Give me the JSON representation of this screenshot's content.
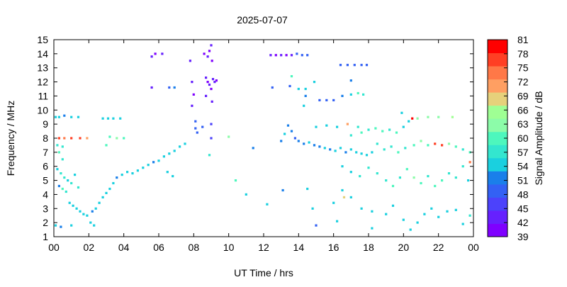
{
  "chart_data": {
    "type": "scatter",
    "title": "2025-07-07",
    "xlabel": "UT Time / hrs",
    "ylabel": "Frequency / MHz",
    "xlim": [
      0,
      24
    ],
    "ylim": [
      1,
      15
    ],
    "x_ticks": [
      "00",
      "02",
      "04",
      "06",
      "08",
      "10",
      "12",
      "14",
      "16",
      "18",
      "20",
      "22",
      "00"
    ],
    "y_ticks": [
      "1",
      "2",
      "3",
      "4",
      "5",
      "6",
      "7",
      "8",
      "9",
      "10",
      "11",
      "12",
      "13",
      "14",
      "15"
    ],
    "grid": false,
    "colorbar": {
      "label": "Signal Amplitude / dB",
      "range": [
        39,
        81
      ],
      "ticks": [
        "39",
        "42",
        "45",
        "48",
        "51",
        "54",
        "57",
        "60",
        "63",
        "66",
        "69",
        "72",
        "75",
        "78",
        "81"
      ],
      "colors": [
        "#7f00ff",
        "#6621fe",
        "#4c42fb",
        "#3361f4",
        "#1a7fea",
        "#1ad0df",
        "#33e6cf",
        "#4df7bd",
        "#8cfca9",
        "#9fff94",
        "#e6d17b",
        "#ff9f62",
        "#ff7847",
        "#ff3f24",
        "#ff0000"
      ]
    },
    "series_description": "Ionospheric echo amplitude vs frequency and UT time; point values are sampled points of each visible cluster.",
    "points": [
      {
        "x": 0.1,
        "y": 9.5,
        "v": 55
      },
      {
        "x": 0.3,
        "y": 9.5,
        "v": 54
      },
      {
        "x": 0.6,
        "y": 9.6,
        "v": 52
      },
      {
        "x": 1.0,
        "y": 9.5,
        "v": 55
      },
      {
        "x": 1.4,
        "y": 9.5,
        "v": 53
      },
      {
        "x": 0.3,
        "y": 8.0,
        "v": 78
      },
      {
        "x": 0.6,
        "y": 8.0,
        "v": 74
      },
      {
        "x": 1.0,
        "y": 8.0,
        "v": 77
      },
      {
        "x": 1.5,
        "y": 8.0,
        "v": 76
      },
      {
        "x": 1.9,
        "y": 8.0,
        "v": 70
      },
      {
        "x": 0.2,
        "y": 7.5,
        "v": 57
      },
      {
        "x": 0.5,
        "y": 7.4,
        "v": 56
      },
      {
        "x": 0.3,
        "y": 7.0,
        "v": 60
      },
      {
        "x": 0.5,
        "y": 6.5,
        "v": 58
      },
      {
        "x": 0.2,
        "y": 5.8,
        "v": 54
      },
      {
        "x": 0.4,
        "y": 5.5,
        "v": 56
      },
      {
        "x": 0.6,
        "y": 5.2,
        "v": 57
      },
      {
        "x": 0.8,
        "y": 5.0,
        "v": 55
      },
      {
        "x": 1.0,
        "y": 4.8,
        "v": 58
      },
      {
        "x": 0.3,
        "y": 4.6,
        "v": 52
      },
      {
        "x": 0.5,
        "y": 4.4,
        "v": 60
      },
      {
        "x": 0.7,
        "y": 4.2,
        "v": 56
      },
      {
        "x": 1.2,
        "y": 5.4,
        "v": 55
      },
      {
        "x": 1.4,
        "y": 4.5,
        "v": 57
      },
      {
        "x": 0.1,
        "y": 1.8,
        "v": 55
      },
      {
        "x": 0.4,
        "y": 1.7,
        "v": 52
      },
      {
        "x": 1.0,
        "y": 1.8,
        "v": 54
      },
      {
        "x": 0.9,
        "y": 3.4,
        "v": 53
      },
      {
        "x": 1.1,
        "y": 3.2,
        "v": 54
      },
      {
        "x": 1.3,
        "y": 3.0,
        "v": 55
      },
      {
        "x": 1.5,
        "y": 2.8,
        "v": 53
      },
      {
        "x": 1.7,
        "y": 2.6,
        "v": 54
      },
      {
        "x": 1.9,
        "y": 2.5,
        "v": 55
      },
      {
        "x": 2.1,
        "y": 2.0,
        "v": 53
      },
      {
        "x": 2.3,
        "y": 1.8,
        "v": 54
      },
      {
        "x": 2.2,
        "y": 2.8,
        "v": 52
      },
      {
        "x": 2.4,
        "y": 3.0,
        "v": 55
      },
      {
        "x": 2.6,
        "y": 3.4,
        "v": 53
      },
      {
        "x": 2.8,
        "y": 3.8,
        "v": 54
      },
      {
        "x": 3.0,
        "y": 4.1,
        "v": 55
      },
      {
        "x": 3.2,
        "y": 4.4,
        "v": 54
      },
      {
        "x": 3.4,
        "y": 4.8,
        "v": 53
      },
      {
        "x": 3.6,
        "y": 5.2,
        "v": 52
      },
      {
        "x": 3.9,
        "y": 5.4,
        "v": 54
      },
      {
        "x": 4.2,
        "y": 5.6,
        "v": 53
      },
      {
        "x": 4.5,
        "y": 5.5,
        "v": 55
      },
      {
        "x": 4.8,
        "y": 5.7,
        "v": 54
      },
      {
        "x": 2.8,
        "y": 9.4,
        "v": 55
      },
      {
        "x": 3.1,
        "y": 9.4,
        "v": 54
      },
      {
        "x": 3.4,
        "y": 9.4,
        "v": 55
      },
      {
        "x": 3.8,
        "y": 9.4,
        "v": 53
      },
      {
        "x": 3.2,
        "y": 8.1,
        "v": 60
      },
      {
        "x": 3.6,
        "y": 8.0,
        "v": 62
      },
      {
        "x": 4.0,
        "y": 8.0,
        "v": 60
      },
      {
        "x": 3.0,
        "y": 7.5,
        "v": 61
      },
      {
        "x": 5.1,
        "y": 5.9,
        "v": 53
      },
      {
        "x": 5.4,
        "y": 6.1,
        "v": 54
      },
      {
        "x": 5.7,
        "y": 6.3,
        "v": 52
      },
      {
        "x": 6.0,
        "y": 6.4,
        "v": 55
      },
      {
        "x": 6.3,
        "y": 6.7,
        "v": 54
      },
      {
        "x": 6.6,
        "y": 6.9,
        "v": 53
      },
      {
        "x": 6.9,
        "y": 7.1,
        "v": 55
      },
      {
        "x": 7.2,
        "y": 7.4,
        "v": 54
      },
      {
        "x": 7.5,
        "y": 7.6,
        "v": 53
      },
      {
        "x": 6.5,
        "y": 5.6,
        "v": 55
      },
      {
        "x": 6.8,
        "y": 5.3,
        "v": 54
      },
      {
        "x": 5.6,
        "y": 13.8,
        "v": 42
      },
      {
        "x": 5.8,
        "y": 14.0,
        "v": 41
      },
      {
        "x": 6.2,
        "y": 14.0,
        "v": 42
      },
      {
        "x": 5.6,
        "y": 11.6,
        "v": 42
      },
      {
        "x": 6.6,
        "y": 11.6,
        "v": 50
      },
      {
        "x": 6.9,
        "y": 11.6,
        "v": 51
      },
      {
        "x": 7.8,
        "y": 13.5,
        "v": 42
      },
      {
        "x": 7.9,
        "y": 12.0,
        "v": 43
      },
      {
        "x": 8.0,
        "y": 11.1,
        "v": 41
      },
      {
        "x": 7.9,
        "y": 10.3,
        "v": 42
      },
      {
        "x": 8.1,
        "y": 9.2,
        "v": 48
      },
      {
        "x": 8.1,
        "y": 8.7,
        "v": 49
      },
      {
        "x": 8.2,
        "y": 8.4,
        "v": 48
      },
      {
        "x": 8.5,
        "y": 8.8,
        "v": 50
      },
      {
        "x": 8.6,
        "y": 14.0,
        "v": 41
      },
      {
        "x": 8.8,
        "y": 13.8,
        "v": 42
      },
      {
        "x": 8.9,
        "y": 14.2,
        "v": 41
      },
      {
        "x": 9.0,
        "y": 14.6,
        "v": 42
      },
      {
        "x": 9.05,
        "y": 13.5,
        "v": 41
      },
      {
        "x": 8.7,
        "y": 12.3,
        "v": 42
      },
      {
        "x": 8.8,
        "y": 12.0,
        "v": 41
      },
      {
        "x": 8.9,
        "y": 11.8,
        "v": 42
      },
      {
        "x": 9.0,
        "y": 11.5,
        "v": 41
      },
      {
        "x": 9.1,
        "y": 12.2,
        "v": 42
      },
      {
        "x": 9.2,
        "y": 12.0,
        "v": 42
      },
      {
        "x": 9.3,
        "y": 12.1,
        "v": 41
      },
      {
        "x": 8.7,
        "y": 11.0,
        "v": 42
      },
      {
        "x": 9.05,
        "y": 10.6,
        "v": 43
      },
      {
        "x": 9.0,
        "y": 9.0,
        "v": 46
      },
      {
        "x": 9.0,
        "y": 8.0,
        "v": 47
      },
      {
        "x": 8.9,
        "y": 6.8,
        "v": 58
      },
      {
        "x": 10.0,
        "y": 8.1,
        "v": 63
      },
      {
        "x": 11.4,
        "y": 7.3,
        "v": 52
      },
      {
        "x": 10.4,
        "y": 5.0,
        "v": 59
      },
      {
        "x": 11.0,
        "y": 4.0,
        "v": 54
      },
      {
        "x": 12.2,
        "y": 3.3,
        "v": 53
      },
      {
        "x": 12.4,
        "y": 13.9,
        "v": 42
      },
      {
        "x": 12.7,
        "y": 13.9,
        "v": 41
      },
      {
        "x": 13.0,
        "y": 13.9,
        "v": 42
      },
      {
        "x": 13.3,
        "y": 13.9,
        "v": 41
      },
      {
        "x": 13.6,
        "y": 13.9,
        "v": 42
      },
      {
        "x": 13.9,
        "y": 14.0,
        "v": 48
      },
      {
        "x": 14.2,
        "y": 13.9,
        "v": 49
      },
      {
        "x": 14.5,
        "y": 13.9,
        "v": 48
      },
      {
        "x": 12.5,
        "y": 11.6,
        "v": 50
      },
      {
        "x": 13.5,
        "y": 11.7,
        "v": 50
      },
      {
        "x": 13.6,
        "y": 12.4,
        "v": 60
      },
      {
        "x": 14.0,
        "y": 11.5,
        "v": 55
      },
      {
        "x": 14.4,
        "y": 11.5,
        "v": 54
      },
      {
        "x": 14.9,
        "y": 12.0,
        "v": 53
      },
      {
        "x": 14.4,
        "y": 11.0,
        "v": 52
      },
      {
        "x": 14.3,
        "y": 10.3,
        "v": 54
      },
      {
        "x": 15.2,
        "y": 10.7,
        "v": 49
      },
      {
        "x": 15.6,
        "y": 10.7,
        "v": 48
      },
      {
        "x": 16.0,
        "y": 10.7,
        "v": 49
      },
      {
        "x": 16.4,
        "y": 13.2,
        "v": 49
      },
      {
        "x": 16.8,
        "y": 13.2,
        "v": 48
      },
      {
        "x": 17.2,
        "y": 13.2,
        "v": 50
      },
      {
        "x": 17.6,
        "y": 13.2,
        "v": 49
      },
      {
        "x": 17.9,
        "y": 13.2,
        "v": 48
      },
      {
        "x": 16.5,
        "y": 11.0,
        "v": 52
      },
      {
        "x": 17.0,
        "y": 11.1,
        "v": 54
      },
      {
        "x": 17.4,
        "y": 11.2,
        "v": 60
      },
      {
        "x": 17.7,
        "y": 11.1,
        "v": 56
      },
      {
        "x": 17.0,
        "y": 12.1,
        "v": 52
      },
      {
        "x": 13.0,
        "y": 7.8,
        "v": 51
      },
      {
        "x": 13.2,
        "y": 8.3,
        "v": 53
      },
      {
        "x": 13.4,
        "y": 8.9,
        "v": 52
      },
      {
        "x": 13.6,
        "y": 8.5,
        "v": 51
      },
      {
        "x": 13.8,
        "y": 8.0,
        "v": 50
      },
      {
        "x": 14.0,
        "y": 7.8,
        "v": 52
      },
      {
        "x": 14.3,
        "y": 7.6,
        "v": 51
      },
      {
        "x": 14.6,
        "y": 7.7,
        "v": 53
      },
      {
        "x": 14.9,
        "y": 7.5,
        "v": 52
      },
      {
        "x": 15.2,
        "y": 7.4,
        "v": 51
      },
      {
        "x": 15.5,
        "y": 7.3,
        "v": 53
      },
      {
        "x": 15.8,
        "y": 7.2,
        "v": 52
      },
      {
        "x": 16.1,
        "y": 7.1,
        "v": 54
      },
      {
        "x": 16.4,
        "y": 7.3,
        "v": 53
      },
      {
        "x": 16.7,
        "y": 7.0,
        "v": 52
      },
      {
        "x": 17.0,
        "y": 7.2,
        "v": 54
      },
      {
        "x": 17.3,
        "y": 7.0,
        "v": 55
      },
      {
        "x": 17.6,
        "y": 6.9,
        "v": 53
      },
      {
        "x": 17.9,
        "y": 6.8,
        "v": 54
      },
      {
        "x": 18.2,
        "y": 7.0,
        "v": 55
      },
      {
        "x": 15.0,
        "y": 8.8,
        "v": 53
      },
      {
        "x": 15.6,
        "y": 8.9,
        "v": 54
      },
      {
        "x": 16.2,
        "y": 8.8,
        "v": 53
      },
      {
        "x": 16.8,
        "y": 9.0,
        "v": 72
      },
      {
        "x": 17.4,
        "y": 8.8,
        "v": 57
      },
      {
        "x": 17.0,
        "y": 8.2,
        "v": 56
      },
      {
        "x": 17.6,
        "y": 8.4,
        "v": 60
      },
      {
        "x": 18.0,
        "y": 8.6,
        "v": 58
      },
      {
        "x": 18.4,
        "y": 8.7,
        "v": 60
      },
      {
        "x": 18.8,
        "y": 8.5,
        "v": 59
      },
      {
        "x": 19.2,
        "y": 8.6,
        "v": 58
      },
      {
        "x": 19.6,
        "y": 8.4,
        "v": 60
      },
      {
        "x": 20.0,
        "y": 8.8,
        "v": 55
      },
      {
        "x": 20.3,
        "y": 9.2,
        "v": 54
      },
      {
        "x": 20.5,
        "y": 9.4,
        "v": 79
      },
      {
        "x": 19.9,
        "y": 9.8,
        "v": 55
      },
      {
        "x": 20.8,
        "y": 9.4,
        "v": 63
      },
      {
        "x": 21.4,
        "y": 9.5,
        "v": 63
      },
      {
        "x": 22.0,
        "y": 9.5,
        "v": 64
      },
      {
        "x": 22.8,
        "y": 9.5,
        "v": 65
      },
      {
        "x": 18.5,
        "y": 7.6,
        "v": 57
      },
      {
        "x": 18.9,
        "y": 7.2,
        "v": 56
      },
      {
        "x": 19.3,
        "y": 7.4,
        "v": 58
      },
      {
        "x": 19.7,
        "y": 7.0,
        "v": 60
      },
      {
        "x": 20.1,
        "y": 7.3,
        "v": 57
      },
      {
        "x": 20.6,
        "y": 7.5,
        "v": 59
      },
      {
        "x": 21.0,
        "y": 7.8,
        "v": 62
      },
      {
        "x": 21.4,
        "y": 7.5,
        "v": 60
      },
      {
        "x": 21.8,
        "y": 7.6,
        "v": 76
      },
      {
        "x": 22.2,
        "y": 7.5,
        "v": 78
      },
      {
        "x": 22.6,
        "y": 7.6,
        "v": 63
      },
      {
        "x": 23.0,
        "y": 7.4,
        "v": 60
      },
      {
        "x": 23.4,
        "y": 7.2,
        "v": 58
      },
      {
        "x": 23.8,
        "y": 7.0,
        "v": 60
      },
      {
        "x": 16.5,
        "y": 6.0,
        "v": 54
      },
      {
        "x": 17.0,
        "y": 5.6,
        "v": 55
      },
      {
        "x": 17.5,
        "y": 5.3,
        "v": 56
      },
      {
        "x": 18.0,
        "y": 5.9,
        "v": 57
      },
      {
        "x": 18.5,
        "y": 5.5,
        "v": 56
      },
      {
        "x": 19.0,
        "y": 5.0,
        "v": 58
      },
      {
        "x": 19.4,
        "y": 4.6,
        "v": 60
      },
      {
        "x": 19.8,
        "y": 5.2,
        "v": 57
      },
      {
        "x": 20.2,
        "y": 5.8,
        "v": 59
      },
      {
        "x": 20.6,
        "y": 5.2,
        "v": 63
      },
      {
        "x": 21.0,
        "y": 4.8,
        "v": 61
      },
      {
        "x": 21.4,
        "y": 5.3,
        "v": 58
      },
      {
        "x": 21.8,
        "y": 4.6,
        "v": 60
      },
      {
        "x": 22.2,
        "y": 5.0,
        "v": 59
      },
      {
        "x": 22.6,
        "y": 5.5,
        "v": 57
      },
      {
        "x": 23.0,
        "y": 5.2,
        "v": 56
      },
      {
        "x": 23.4,
        "y": 6.0,
        "v": 58
      },
      {
        "x": 23.8,
        "y": 6.3,
        "v": 75
      },
      {
        "x": 23.7,
        "y": 5.0,
        "v": 55
      },
      {
        "x": 17.0,
        "y": 3.8,
        "v": 54
      },
      {
        "x": 17.6,
        "y": 3.0,
        "v": 55
      },
      {
        "x": 18.2,
        "y": 2.8,
        "v": 53
      },
      {
        "x": 19.0,
        "y": 2.6,
        "v": 54
      },
      {
        "x": 19.4,
        "y": 3.2,
        "v": 55
      },
      {
        "x": 20.0,
        "y": 2.2,
        "v": 53
      },
      {
        "x": 20.4,
        "y": 1.5,
        "v": 54
      },
      {
        "x": 20.8,
        "y": 2.0,
        "v": 55
      },
      {
        "x": 21.2,
        "y": 2.6,
        "v": 54
      },
      {
        "x": 21.6,
        "y": 3.0,
        "v": 55
      },
      {
        "x": 22.0,
        "y": 2.4,
        "v": 53
      },
      {
        "x": 22.5,
        "y": 2.8,
        "v": 55
      },
      {
        "x": 23.0,
        "y": 2.9,
        "v": 54
      },
      {
        "x": 23.4,
        "y": 1.9,
        "v": 55
      },
      {
        "x": 23.8,
        "y": 2.5,
        "v": 56
      },
      {
        "x": 14.8,
        "y": 3.0,
        "v": 54
      },
      {
        "x": 15.0,
        "y": 1.8,
        "v": 49
      },
      {
        "x": 16.2,
        "y": 2.1,
        "v": 53
      },
      {
        "x": 16.0,
        "y": 3.4,
        "v": 55
      },
      {
        "x": 16.5,
        "y": 4.3,
        "v": 53
      },
      {
        "x": 13.1,
        "y": 4.3,
        "v": 52
      },
      {
        "x": 14.5,
        "y": 4.4,
        "v": 53
      },
      {
        "x": 18.2,
        "y": 1.6,
        "v": 54
      },
      {
        "x": 16.6,
        "y": 3.8,
        "v": 69
      }
    ]
  }
}
